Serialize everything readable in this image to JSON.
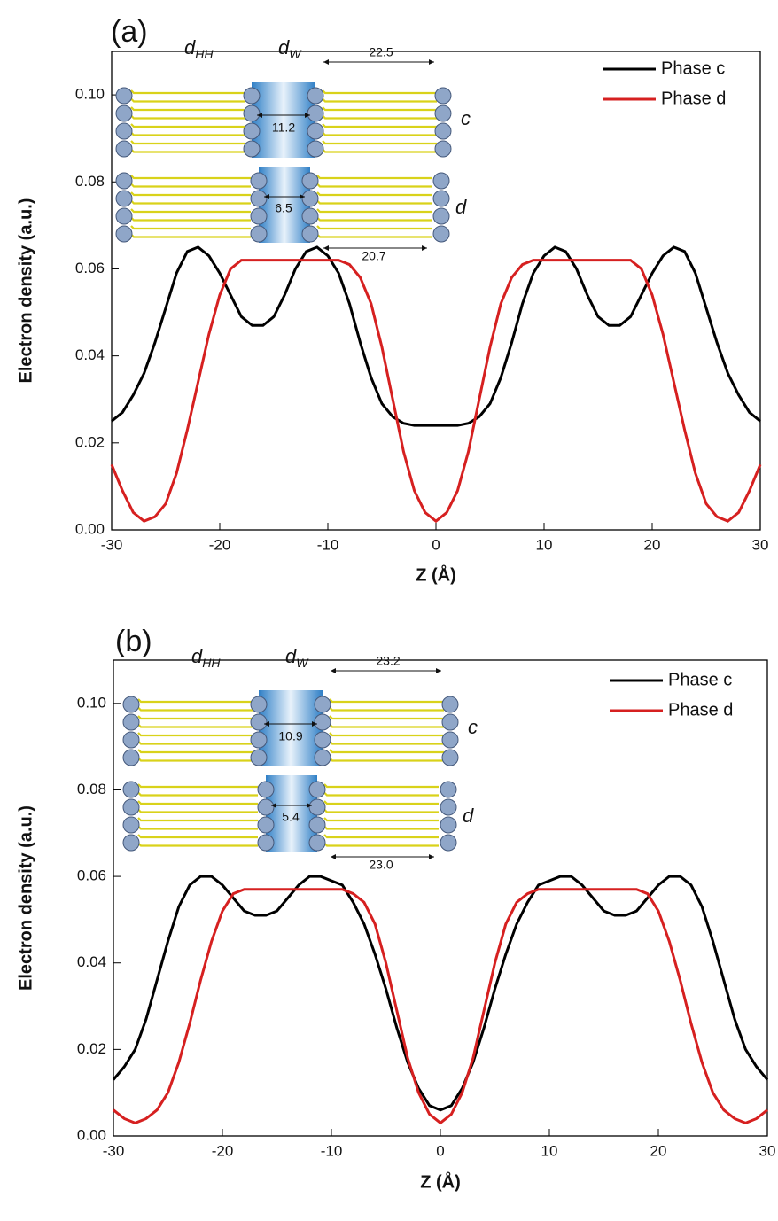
{
  "chart_data": [
    {
      "type": "line",
      "title": "(a)",
      "x_label": "Z (Å)",
      "y_label": "Electron density (a.u.)",
      "x": [
        -30,
        -29,
        -28,
        -27,
        -26,
        -25,
        -24,
        -23,
        -22,
        -21,
        -20,
        -19,
        -18,
        -17,
        -16,
        -15,
        -14,
        -13,
        -12,
        -11,
        -10,
        -9,
        -8,
        -7,
        -6,
        -5,
        -4,
        -3,
        -2,
        -1,
        0,
        1,
        2,
        3,
        4,
        5,
        6,
        7,
        8,
        9,
        10,
        11,
        12,
        13,
        14,
        15,
        16,
        17,
        18,
        19,
        20,
        21,
        22,
        23,
        24,
        25,
        26,
        27,
        28,
        29,
        30
      ],
      "series": [
        {
          "name": "Phase c",
          "color": "#000000",
          "values": [
            0.025,
            0.027,
            0.031,
            0.036,
            0.043,
            0.051,
            0.059,
            0.064,
            0.065,
            0.063,
            0.059,
            0.054,
            0.049,
            0.047,
            0.047,
            0.049,
            0.054,
            0.06,
            0.064,
            0.065,
            0.063,
            0.059,
            0.052,
            0.043,
            0.035,
            0.029,
            0.026,
            0.0245,
            0.024,
            0.024,
            0.024,
            0.024,
            0.024,
            0.0245,
            0.026,
            0.029,
            0.035,
            0.043,
            0.052,
            0.059,
            0.063,
            0.065,
            0.064,
            0.06,
            0.054,
            0.049,
            0.047,
            0.047,
            0.049,
            0.054,
            0.059,
            0.063,
            0.065,
            0.064,
            0.059,
            0.051,
            0.043,
            0.036,
            0.031,
            0.027,
            0.025
          ]
        },
        {
          "name": "Phase d",
          "color": "#d62020",
          "values": [
            0.015,
            0.009,
            0.004,
            0.002,
            0.003,
            0.006,
            0.013,
            0.023,
            0.034,
            0.045,
            0.054,
            0.06,
            0.062,
            0.062,
            0.062,
            0.062,
            0.062,
            0.062,
            0.062,
            0.062,
            0.062,
            0.062,
            0.061,
            0.058,
            0.052,
            0.042,
            0.03,
            0.018,
            0.009,
            0.004,
            0.002,
            0.004,
            0.009,
            0.018,
            0.03,
            0.042,
            0.052,
            0.058,
            0.061,
            0.062,
            0.062,
            0.062,
            0.062,
            0.062,
            0.062,
            0.062,
            0.062,
            0.062,
            0.062,
            0.06,
            0.054,
            0.045,
            0.034,
            0.023,
            0.013,
            0.006,
            0.003,
            0.002,
            0.004,
            0.009,
            0.015
          ]
        }
      ],
      "xlim": [
        -30,
        30
      ],
      "xticks": [
        -30,
        -20,
        -10,
        0,
        10,
        20,
        30
      ],
      "ylim": [
        0,
        0.11
      ],
      "yticks": [
        {
          "value": 0,
          "label": "0.00"
        },
        {
          "value": 0.02,
          "label": "0.02"
        },
        {
          "value": 0.04,
          "label": "0.04"
        },
        {
          "value": 0.06,
          "label": "0.06"
        },
        {
          "value": 0.08,
          "label": "0.08"
        },
        {
          "value": 0.1,
          "label": "0.10"
        }
      ],
      "legend": "upper right",
      "inset": {
        "d_hh": {
          "base": "d",
          "sub": "HH"
        },
        "d_w": {
          "base": "d",
          "sub": "W"
        },
        "period_c": "22.5",
        "water_c": "11.2",
        "water_d": "6.5",
        "period_d": "20.7",
        "phase_c": "c",
        "phase_d": "d"
      }
    },
    {
      "type": "line",
      "title": "(b)",
      "x_label": "Z (Å)",
      "y_label": "Electron density (a.u.)",
      "x": [
        -30,
        -29,
        -28,
        -27,
        -26,
        -25,
        -24,
        -23,
        -22,
        -21,
        -20,
        -19,
        -18,
        -17,
        -16,
        -15,
        -14,
        -13,
        -12,
        -11,
        -10,
        -9,
        -8,
        -7,
        -6,
        -5,
        -4,
        -3,
        -2,
        -1,
        0,
        1,
        2,
        3,
        4,
        5,
        6,
        7,
        8,
        9,
        10,
        11,
        12,
        13,
        14,
        15,
        16,
        17,
        18,
        19,
        20,
        21,
        22,
        23,
        24,
        25,
        26,
        27,
        28,
        29,
        30
      ],
      "series": [
        {
          "name": "Phase c",
          "color": "#000000",
          "values": [
            0.013,
            0.016,
            0.02,
            0.027,
            0.036,
            0.045,
            0.053,
            0.058,
            0.06,
            0.06,
            0.058,
            0.055,
            0.052,
            0.051,
            0.051,
            0.052,
            0.055,
            0.058,
            0.06,
            0.06,
            0.059,
            0.058,
            0.054,
            0.049,
            0.042,
            0.034,
            0.025,
            0.017,
            0.011,
            0.007,
            0.006,
            0.007,
            0.011,
            0.017,
            0.025,
            0.034,
            0.042,
            0.049,
            0.054,
            0.058,
            0.059,
            0.06,
            0.06,
            0.058,
            0.055,
            0.052,
            0.051,
            0.051,
            0.052,
            0.055,
            0.058,
            0.06,
            0.06,
            0.058,
            0.053,
            0.045,
            0.036,
            0.027,
            0.02,
            0.016,
            0.013
          ]
        },
        {
          "name": "Phase d",
          "color": "#d62020",
          "values": [
            0.006,
            0.004,
            0.003,
            0.004,
            0.006,
            0.01,
            0.017,
            0.026,
            0.036,
            0.045,
            0.052,
            0.056,
            0.057,
            0.057,
            0.057,
            0.057,
            0.057,
            0.057,
            0.057,
            0.057,
            0.057,
            0.057,
            0.056,
            0.054,
            0.049,
            0.04,
            0.029,
            0.018,
            0.01,
            0.005,
            0.003,
            0.005,
            0.01,
            0.018,
            0.029,
            0.04,
            0.049,
            0.054,
            0.056,
            0.057,
            0.057,
            0.057,
            0.057,
            0.057,
            0.057,
            0.057,
            0.057,
            0.057,
            0.057,
            0.056,
            0.052,
            0.045,
            0.036,
            0.026,
            0.017,
            0.01,
            0.006,
            0.004,
            0.003,
            0.004,
            0.006
          ]
        }
      ],
      "xlim": [
        -30,
        30
      ],
      "xticks": [
        -30,
        -20,
        -10,
        0,
        10,
        20,
        30
      ],
      "ylim": [
        0,
        0.11
      ],
      "yticks": [
        {
          "value": 0,
          "label": "0.00"
        },
        {
          "value": 0.02,
          "label": "0.02"
        },
        {
          "value": 0.04,
          "label": "0.04"
        },
        {
          "value": 0.06,
          "label": "0.06"
        },
        {
          "value": 0.08,
          "label": "0.08"
        },
        {
          "value": 0.1,
          "label": "0.10"
        }
      ],
      "legend": "upper right",
      "inset": {
        "d_hh": {
          "base": "d",
          "sub": "HH"
        },
        "d_w": {
          "base": "d",
          "sub": "W"
        },
        "period_c": "23.2",
        "water_c": "10.9",
        "water_d": "5.4",
        "period_d": "23.0",
        "phase_c": "c",
        "phase_d": "d"
      }
    }
  ]
}
